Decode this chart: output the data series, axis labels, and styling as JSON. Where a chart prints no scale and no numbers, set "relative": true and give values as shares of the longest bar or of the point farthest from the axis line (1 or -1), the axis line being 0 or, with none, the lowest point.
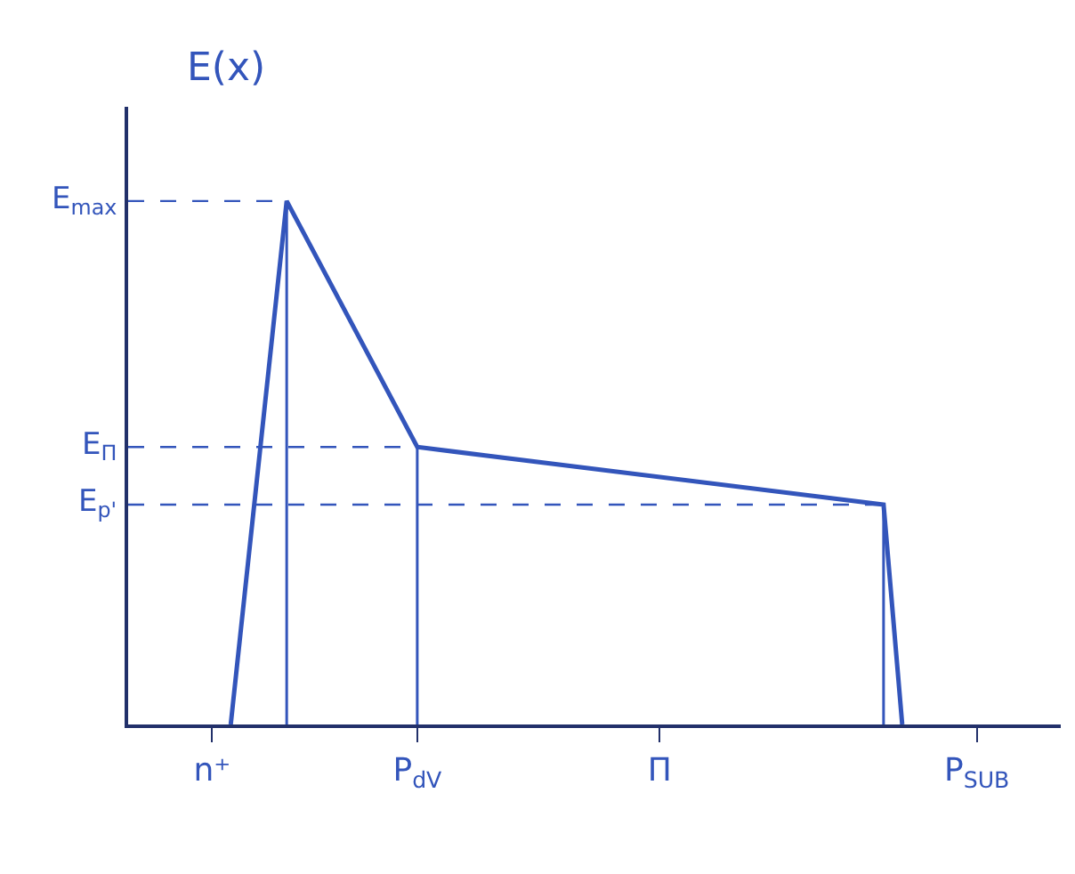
{
  "chart_data": {
    "type": "line",
    "relative": true,
    "ylabel": "E(x)",
    "categories": [
      null,
      null,
      null,
      null,
      "n⁺",
      null,
      null,
      null,
      null,
      null,
      null,
      null,
      null,
      null,
      null,
      "P$_{dV}$",
      null,
      null,
      null,
      null,
      null,
      null,
      null,
      null,
      null,
      null,
      null,
      null,
      "Π",
      null,
      null,
      null,
      null,
      null,
      null,
      null,
      null,
      null,
      null,
      null,
      null,
      null,
      null,
      null,
      null,
      "P$_{SUB}$",
      null,
      null,
      null,
      null
    ],
    "values": [
      null,
      null,
      null,
      null,
      null,
      0,
      null,
      null,
      1,
      null,
      null,
      null,
      null,
      null,
      null,
      0.53,
      null,
      null,
      null,
      null,
      null,
      null,
      null,
      null,
      null,
      null,
      null,
      null,
      null,
      null,
      null,
      null,
      null,
      null,
      null,
      null,
      null,
      null,
      null,
      null,
      0.42,
      0,
      null,
      null,
      null,
      null,
      null,
      null,
      null,
      null
    ],
    "color": "#3355bb",
    "ref_lines": [
      {
        "axis": "y",
        "value": 1,
        "label": "E$_{max}$",
        "line_style": "dashed"
      },
      {
        "axis": "y",
        "value": 0.53,
        "label": "E$_{Π}$",
        "line_style": "dashed"
      },
      {
        "axis": "y",
        "value": 0.42,
        "label": "E$_{p'}$",
        "line_style": "dashed"
      }
    ],
    "grid": false,
    "legend": false,
    "marker": "none",
    "line_style": "solid"
  }
}
